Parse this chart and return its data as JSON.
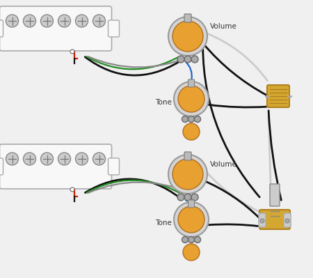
{
  "bg_color": "#f0f0f0",
  "pickup_fill": "#f0f0f0",
  "pickup_edge": "#aaaaaa",
  "pole_fill": "#cccccc",
  "pole_edge": "#888888",
  "pot_outer": "#cccccc",
  "pot_body": "#e8a030",
  "pot_lug": "#888888",
  "wire_black": "#111111",
  "wire_green": "#228B22",
  "wire_gray": "#888888",
  "wire_red": "#cc2200",
  "wire_white": "#cccccc",
  "wire_blue": "#2266cc",
  "jack_gold": "#d4a830",
  "jack_silver": "#aaaaaa",
  "text_color": "#333333",
  "vol_label": "Volume",
  "tone_label": "Tone",
  "lw": 1.6,
  "lw_thick": 2.0
}
